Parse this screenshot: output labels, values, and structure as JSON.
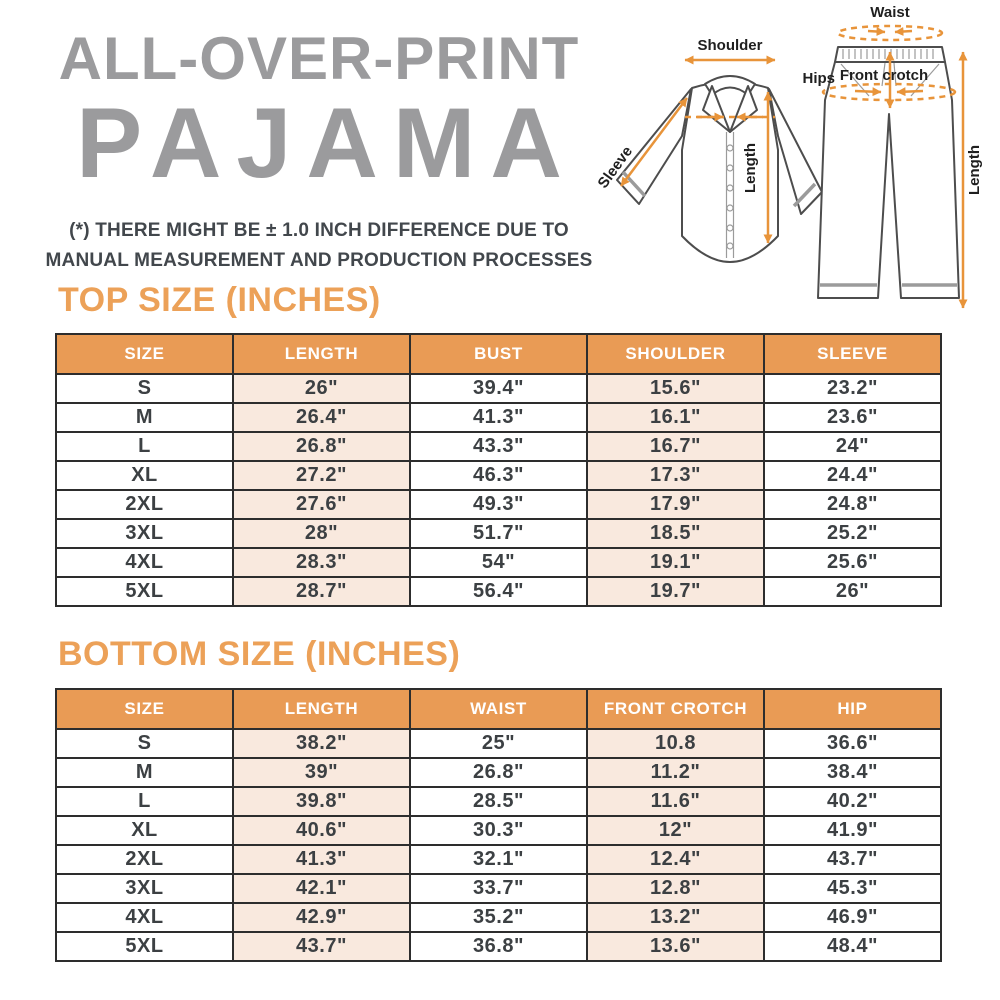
{
  "header": {
    "title_line1": "ALL-OVER-PRINT",
    "title_line2": "PAJAMA",
    "disclaimer_line1": "(*) THERE MIGHT BE ± 1.0 INCH DIFFERENCE DUE TO",
    "disclaimer_line2": "MANUAL MEASUREMENT AND PRODUCTION PROCESSES"
  },
  "diagram": {
    "labels": {
      "shoulder": "Shoulder",
      "sleeve": "Sleeve",
      "top_length": "Length",
      "waist": "Waist",
      "hips": "Hips",
      "front_crotch": "Front crotch",
      "bottom_length": "Length"
    }
  },
  "colors": {
    "title_gray": "#9B9B9D",
    "heading_orange": "#ECA158",
    "table_header_orange": "#E99B55",
    "shaded_cell_pink": "#F9E9DE",
    "table_border": "#2D2D2D",
    "cell_text": "#3C4043",
    "arrow_orange": "#E8943A"
  },
  "top_table": {
    "title": "TOP SIZE (INCHES)",
    "columns": [
      "SIZE",
      "LENGTH",
      "BUST",
      "SHOULDER",
      "SLEEVE"
    ],
    "shaded_columns": [
      1,
      3
    ],
    "rows": [
      [
        "S",
        "26\"",
        "39.4\"",
        "15.6\"",
        "23.2\""
      ],
      [
        "M",
        "26.4\"",
        "41.3\"",
        "16.1\"",
        "23.6\""
      ],
      [
        "L",
        "26.8\"",
        "43.3\"",
        "16.7\"",
        "24\""
      ],
      [
        "XL",
        "27.2\"",
        "46.3\"",
        "17.3\"",
        "24.4\""
      ],
      [
        "2XL",
        "27.6\"",
        "49.3\"",
        "17.9\"",
        "24.8\""
      ],
      [
        "3XL",
        "28\"",
        "51.7\"",
        "18.5\"",
        "25.2\""
      ],
      [
        "4XL",
        "28.3\"",
        "54\"",
        "19.1\"",
        "25.6\""
      ],
      [
        "5XL",
        "28.7\"",
        "56.4\"",
        "19.7\"",
        "26\""
      ]
    ]
  },
  "bottom_table": {
    "title": "BOTTOM SIZE (INCHES)",
    "columns": [
      "SIZE",
      "LENGTH",
      "WAIST",
      "FRONT CROTCH",
      "HIP"
    ],
    "shaded_columns": [
      1,
      3
    ],
    "rows": [
      [
        "S",
        "38.2\"",
        "25\"",
        "10.8",
        "36.6\""
      ],
      [
        "M",
        "39\"",
        "26.8\"",
        "11.2\"",
        "38.4\""
      ],
      [
        "L",
        "39.8\"",
        "28.5\"",
        "11.6\"",
        "40.2\""
      ],
      [
        "XL",
        "40.6\"",
        "30.3\"",
        "12\"",
        "41.9\""
      ],
      [
        "2XL",
        "41.3\"",
        "32.1\"",
        "12.4\"",
        "43.7\""
      ],
      [
        "3XL",
        "42.1\"",
        "33.7\"",
        "12.8\"",
        "45.3\""
      ],
      [
        "4XL",
        "42.9\"",
        "35.2\"",
        "13.2\"",
        "46.9\""
      ],
      [
        "5XL",
        "43.7\"",
        "36.8\"",
        "13.6\"",
        "48.4\""
      ]
    ]
  }
}
